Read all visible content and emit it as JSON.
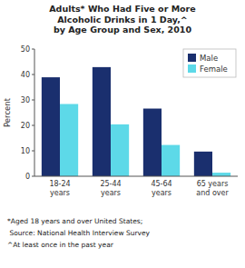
{
  "chart_data": {
    "type": "bar",
    "title": "Adults* Who Had Five or More\nAlcoholic Drinks in 1 Day,^\nby Age Group and Sex, 2010",
    "categories": [
      "18-24\nyears",
      "25-44\nyears",
      "45-64\nyears",
      "65 years\nand over"
    ],
    "series": [
      {
        "name": "Male",
        "color": "#1a2f6e",
        "values": [
          38.9,
          42.9,
          26.6,
          9.7
        ]
      },
      {
        "name": "Female",
        "color": "#5dd9e8",
        "values": [
          28.4,
          20.4,
          12.3,
          1.4
        ]
      }
    ],
    "ylabel": "Percent",
    "ylim": [
      0,
      50
    ],
    "yticks": [
      0,
      10,
      20,
      30,
      40,
      50
    ],
    "grid": false,
    "legend": "upper right",
    "annotations": [
      "*Aged 18 years and over United States;",
      " Source: National Health Interview Survey",
      "^At least once in the past year"
    ]
  }
}
